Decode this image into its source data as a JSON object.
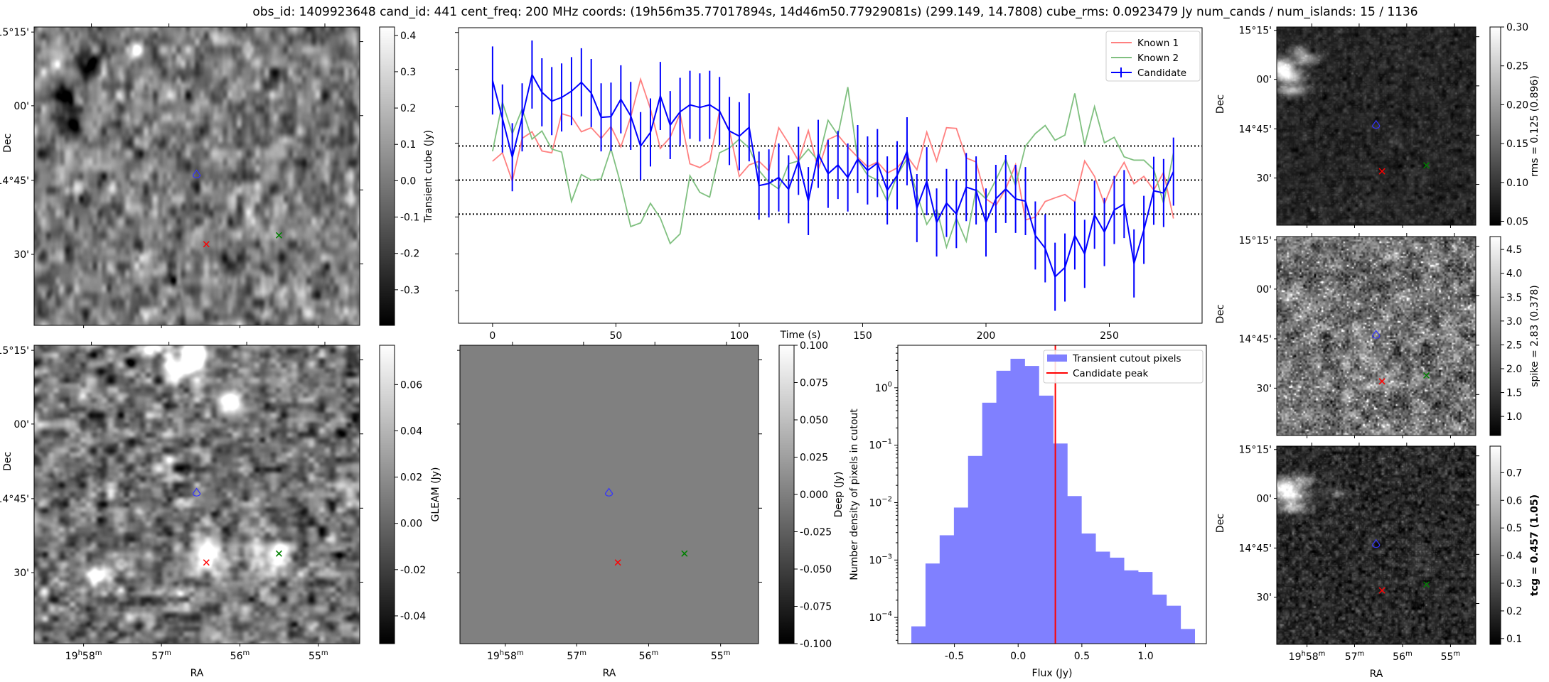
{
  "title": "obs_id: 1409923648 cand_id: 441 cent_freq: 200 MHz coords: (19h56m35.77017894s, 14d46m50.77929081s) (299.149, 14.7808) cube_rms: 0.0923479 Jy num_cands / num_islands: 15 / 1136",
  "axes": {
    "dec_label": "Dec",
    "ra_label": "RA",
    "dec_ticks": [
      "15°15'",
      "00'",
      "14°45'",
      "30'"
    ],
    "ra_ticks": [
      {
        "hours": "19",
        "minutes": "58"
      },
      {
        "hours": "",
        "minutes": "57"
      },
      {
        "hours": "",
        "minutes": "56"
      },
      {
        "hours": "",
        "minutes": "55"
      }
    ],
    "ra_units": {
      "h": "h",
      "m": "m"
    }
  },
  "panels": {
    "transient": {
      "colorbar_label": "Transient cube (Jy)",
      "vmin": -0.398,
      "vmax": 0.423,
      "ticks": [
        "-0.3",
        "-0.2",
        "-0.1",
        "0.0",
        "0.1",
        "0.2",
        "0.3",
        "0.4"
      ]
    },
    "gleam": {
      "colorbar_label": "GLEAM (Jy)",
      "vmin": -0.052,
      "vmax": 0.077,
      "ticks": [
        "-0.04",
        "-0.02",
        "0.00",
        "0.02",
        "0.04",
        "0.06"
      ]
    },
    "deep": {
      "colorbar_label": "Deep (Jy)",
      "vmin": -0.1,
      "vmax": 0.1,
      "ticks": [
        "-0.100",
        "-0.075",
        "-0.050",
        "-0.025",
        "0.000",
        "0.025",
        "0.050",
        "0.075",
        "0.100"
      ]
    },
    "rms": {
      "colorbar_label": "rms = 0.125 (0.896)",
      "vmin": 0.045,
      "vmax": 0.3,
      "ticks": [
        "0.05",
        "0.10",
        "0.15",
        "0.20",
        "0.25",
        "0.30"
      ]
    },
    "spike": {
      "colorbar_label": "spike = 2.83 (0.378)",
      "vmin": 0.6,
      "vmax": 4.77,
      "ticks": [
        "1.0",
        "1.5",
        "2.0",
        "2.5",
        "3.0",
        "3.5",
        "4.0",
        "4.5"
      ]
    },
    "tcg": {
      "colorbar_label": "tcg = 0.457 (1.05)",
      "vmin": 0.079,
      "vmax": 0.796,
      "ticks": [
        "0.1",
        "0.2",
        "0.3",
        "0.4",
        "0.5",
        "0.6",
        "0.7"
      ]
    }
  },
  "markers": {
    "candidate_contour_color": "#3333ff",
    "known1_color": "#ff0000",
    "known2_color": "#008000"
  },
  "chart_data": [
    {
      "type": "line",
      "title": "",
      "xlabel": "Time (s)",
      "ylabel": "",
      "xlim": [
        -13.8,
        287.6
      ],
      "ylim": [
        -0.388,
        0.413
      ],
      "xticks": [
        "0",
        "50",
        "100",
        "150",
        "200",
        "250"
      ],
      "yticks": [
        -0.3,
        -0.2,
        -0.1,
        0.0,
        0.1,
        0.2,
        0.3,
        0.4
      ],
      "hlines": [
        -0.0923,
        0.0,
        0.0923
      ],
      "legend_position": "top-right",
      "x": [
        0,
        4,
        8,
        12,
        16,
        20,
        24,
        28,
        32,
        36,
        40,
        44,
        48,
        52,
        56,
        60,
        64,
        68,
        72,
        76,
        80,
        84,
        88,
        92,
        96,
        100,
        104,
        108,
        112,
        116,
        120,
        124,
        128,
        132,
        136,
        140,
        144,
        148,
        152,
        156,
        160,
        164,
        168,
        172,
        176,
        180,
        184,
        188,
        192,
        196,
        200,
        204,
        208,
        212,
        216,
        220,
        224,
        228,
        232,
        236,
        240,
        244,
        248,
        252,
        256,
        260,
        264,
        268,
        272,
        276
      ],
      "series": [
        {
          "name": "Known 1",
          "color": "#ff8080",
          "values": [
            0.051,
            0.074,
            -0.003,
            0.113,
            0.131,
            0.079,
            0.074,
            0.18,
            0.172,
            0.131,
            0.142,
            0.113,
            0.145,
            0.09,
            0.171,
            0.273,
            0.193,
            0.086,
            0.116,
            0.18,
            0.044,
            0.034,
            0.051,
            0.187,
            0.135,
            0.01,
            0.041,
            0.051,
            0.025,
            0.142,
            0.1,
            0.052,
            0.134,
            0.029,
            0.11,
            0.122,
            0.09,
            0.062,
            0.036,
            0.049,
            0.019,
            0.033,
            0.065,
            0.028,
            0.13,
            0.052,
            0.142,
            0.14,
            0.06,
            0.049,
            -0.051,
            -0.069,
            -0.024,
            0.042,
            -0.108,
            -0.1,
            -0.058,
            -0.048,
            -0.039,
            -0.059,
            0.052,
            0.01,
            -0.065,
            0.003,
            0.048,
            -0.01,
            0.01,
            -0.027,
            0.021,
            -0.104
          ]
        },
        {
          "name": "Known 2",
          "color": "#80c080",
          "values": [
            0.078,
            0.211,
            0.126,
            0.193,
            0.111,
            0.133,
            0.084,
            0.076,
            -0.058,
            0.015,
            0.0,
            0.003,
            0.085,
            -0.012,
            -0.126,
            -0.116,
            -0.063,
            -0.103,
            -0.172,
            -0.146,
            0.012,
            -0.033,
            -0.046,
            0.074,
            0.087,
            0.111,
            0.087,
            0.026,
            -0.006,
            -0.024,
            0.044,
            0.052,
            0.084,
            0.052,
            0.162,
            0.122,
            0.252,
            0.055,
            0.013,
            0.0,
            -0.058,
            0.013,
            0.058,
            -0.038,
            -0.12,
            -0.078,
            -0.182,
            -0.103,
            -0.166,
            -0.025,
            -0.051,
            0.0,
            0.057,
            -0.015,
            0.092,
            0.126,
            0.148,
            0.108,
            0.122,
            0.235,
            0.095,
            0.199,
            0.101,
            0.116,
            0.063,
            0.054,
            0.054,
            0.029,
            -0.063,
            0.074
          ]
        },
        {
          "name": "Candidate",
          "color": "#0000ff",
          "error": 0.0923,
          "values": [
            0.27,
            0.167,
            0.062,
            0.17,
            0.286,
            0.238,
            0.214,
            0.224,
            0.241,
            0.265,
            0.236,
            0.17,
            0.172,
            0.219,
            0.174,
            0.092,
            0.129,
            0.228,
            0.149,
            0.185,
            0.204,
            0.197,
            0.204,
            0.187,
            0.133,
            0.119,
            0.143,
            -0.015,
            -0.009,
            0.007,
            -0.025,
            0.052,
            -0.057,
            0.071,
            0.017,
            0.041,
            0.007,
            0.057,
            0.026,
            0.046,
            -0.028,
            0.013,
            0.078,
            -0.076,
            -0.003,
            -0.115,
            -0.062,
            -0.092,
            -0.019,
            -0.028,
            -0.115,
            -0.051,
            -0.024,
            -0.051,
            -0.057,
            -0.15,
            -0.185,
            -0.262,
            -0.237,
            -0.15,
            -0.2,
            -0.094,
            -0.141,
            -0.081,
            -0.065,
            -0.226,
            -0.135,
            -0.029,
            -0.035,
            0.023
          ]
        }
      ]
    },
    {
      "type": "bar",
      "title": "",
      "xlabel": "Flux (Jy)",
      "ylabel": "Number density of pixels in cutout",
      "yscale": "log",
      "xlim": [
        -0.944,
        1.477
      ],
      "ylim": [
        3.5e-05,
        5.5
      ],
      "xticks": [
        "-0.5",
        "0.0",
        "0.5",
        "1.0"
      ],
      "xtick_values": [
        -0.5,
        0.0,
        0.5,
        1.0
      ],
      "yticks": [
        {
          "base": "10",
          "exp": "0",
          "value": 1
        },
        {
          "base": "10",
          "exp": "−1",
          "value": 0.1
        },
        {
          "base": "10",
          "exp": "−2",
          "value": 0.01
        },
        {
          "base": "10",
          "exp": "−3",
          "value": 0.001
        },
        {
          "base": "10",
          "exp": "−4",
          "value": 0.0001
        }
      ],
      "bin_edges": [
        -0.838,
        -0.727,
        -0.616,
        -0.504,
        -0.393,
        -0.282,
        -0.171,
        -0.06,
        0.051,
        0.162,
        0.274,
        0.385,
        0.496,
        0.607,
        0.718,
        0.83,
        0.941,
        1.052,
        1.163,
        1.274,
        1.385
      ],
      "values": [
        7e-05,
        0.00087,
        0.0027,
        0.0082,
        0.065,
        0.55,
        1.98,
        3.2,
        2.4,
        0.73,
        0.107,
        0.013,
        0.0029,
        0.0014,
        0.0011,
        0.00066,
        0.00062,
        0.00025,
        0.00016,
        6.3e-05
      ],
      "bar_color": "#8080ff",
      "vline": {
        "value": 0.292,
        "color": "#ff0000"
      },
      "legend_position": "top-right",
      "legend": [
        "Transient cutout pixels",
        "Candidate peak"
      ]
    }
  ]
}
